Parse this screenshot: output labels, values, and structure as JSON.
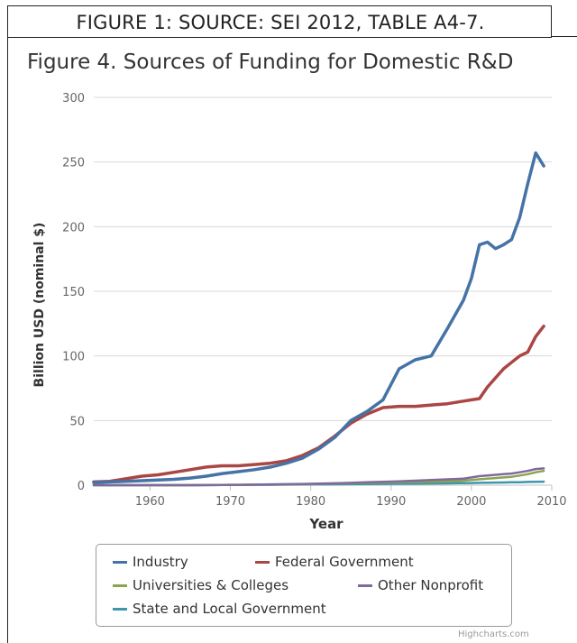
{
  "figure_caption": "FIGURE 1: SOURCE: SEI 2012, TABLE A4-7.",
  "credit": "Highcharts.com",
  "chart_data": {
    "type": "line",
    "title": "Figure 4. Sources of Funding for Domestic R&D",
    "xlabel": "Year",
    "ylabel": "Billion USD (nominal $)",
    "xlim": [
      1953,
      2010
    ],
    "ylim": [
      0,
      300
    ],
    "x_ticks": [
      1960,
      1970,
      1980,
      1990,
      2000,
      2010
    ],
    "y_ticks": [
      0,
      50,
      100,
      150,
      200,
      250,
      300
    ],
    "grid": "horizontal",
    "legend_position": "bottom",
    "x": [
      1953,
      1955,
      1957,
      1959,
      1961,
      1963,
      1965,
      1967,
      1969,
      1971,
      1973,
      1975,
      1977,
      1979,
      1981,
      1983,
      1985,
      1987,
      1989,
      1991,
      1993,
      1995,
      1997,
      1999,
      2000,
      2001,
      2002,
      2003,
      2004,
      2005,
      2006,
      2007,
      2008,
      2009
    ],
    "series": [
      {
        "name": "Industry",
        "color": "#4572A7",
        "values": [
          2,
          2.5,
          3,
          3.5,
          4,
          4.5,
          5.5,
          7,
          9,
          10.5,
          12,
          14,
          17,
          21,
          28,
          37,
          50,
          57,
          66,
          90,
          97,
          100,
          121,
          143,
          160,
          186,
          188,
          183,
          186,
          190,
          207,
          233,
          257,
          247
        ]
      },
      {
        "name": "Federal Government",
        "color": "#AA4643",
        "values": [
          2.5,
          3,
          5,
          7,
          8,
          10,
          12,
          14,
          15,
          15,
          16,
          17,
          19,
          23,
          29,
          38,
          48,
          55,
          60,
          61,
          61,
          62,
          63,
          65,
          66,
          67,
          76,
          83,
          90,
          95,
          100,
          103,
          115,
          123
        ]
      },
      {
        "name": "Universities & Colleges",
        "color": "#89A54E",
        "values": [
          0,
          0,
          0,
          0,
          0,
          0,
          0,
          0.1,
          0.2,
          0.3,
          0.4,
          0.5,
          0.6,
          0.8,
          1,
          1.3,
          1.5,
          1.8,
          2,
          2.2,
          2.5,
          2.7,
          3,
          3.5,
          4,
          4.5,
          5,
          5.5,
          6,
          6.5,
          7.5,
          8.5,
          10,
          11
        ]
      },
      {
        "name": "Other Nonprofit",
        "color": "#80699B",
        "values": [
          0,
          0,
          0,
          0,
          0,
          0,
          0,
          0.1,
          0.2,
          0.3,
          0.4,
          0.6,
          0.8,
          1,
          1.2,
          1.5,
          1.8,
          2.2,
          2.6,
          3,
          3.5,
          4,
          4.5,
          5,
          6,
          7,
          7.5,
          8,
          8.5,
          9,
          10,
          11,
          12.5,
          13
        ]
      },
      {
        "name": "State and Local Government",
        "color": "#3D96AE",
        "values": [
          0,
          0,
          0,
          0,
          0,
          0,
          0,
          0.1,
          0.2,
          0.2,
          0.3,
          0.3,
          0.4,
          0.5,
          0.6,
          0.7,
          0.8,
          0.9,
          1,
          1.1,
          1.2,
          1.3,
          1.4,
          1.6,
          1.7,
          1.8,
          1.9,
          2,
          2.1,
          2.2,
          2.3,
          2.5,
          2.6,
          2.7
        ]
      }
    ]
  }
}
